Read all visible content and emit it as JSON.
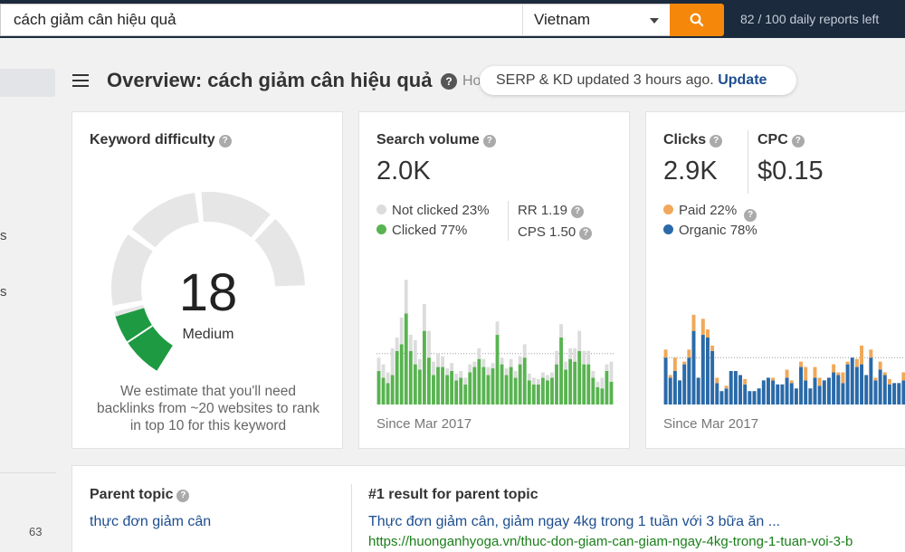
{
  "search": {
    "query": "cách giảm cân hiệu quả",
    "country": "Vietnam",
    "reports_left": "82 / 100 daily reports left"
  },
  "sidebar": {
    "fragments": [
      "s",
      "s"
    ],
    "count": "63"
  },
  "header": {
    "title": "Overview: cách giảm cân hiệu quả",
    "how_text": "Ho",
    "update_text": "SERP & KD updated 3 hours ago.",
    "update_link": "Update"
  },
  "kd": {
    "title": "Keyword difficulty",
    "value": "18",
    "level": "Medium",
    "score": 18,
    "description": "We estimate that you'll need backlinks from ~20 websites to rank in top 10 for this keyword"
  },
  "volume": {
    "title": "Search volume",
    "value": "2.0K",
    "not_clicked": "Not clicked 23%",
    "clicked": "Clicked 77%",
    "rr": "RR 1.19",
    "cps": "CPS 1.50",
    "since": "Since Mar 2017"
  },
  "clicks": {
    "title": "Clicks",
    "value": "2.9K",
    "cpc_title": "CPC",
    "cpc_value": "$0.15",
    "paid": "Paid 22%",
    "organic": "Organic 78%",
    "since": "Since Mar 2017"
  },
  "parent": {
    "title": "Parent topic",
    "topic": "thực đơn giảm cân",
    "result_title": "#1 result for parent topic",
    "result_link": "Thực đơn giảm cân, giảm ngay 4kg trong 1 tuần với 3 bữa ăn ...",
    "result_url": "https://huonganhyoga.vn/thuc-don-giam-can-giam-ngay-4kg-trong-1-tuan-voi-3-b"
  },
  "colors": {
    "accent": "#f5870a",
    "kd_green": "#1e9a42",
    "clicked_green": "#58b350",
    "not_clicked_grey": "#dcdcdc",
    "paid_orange": "#f0a85a",
    "organic_blue": "#2a6aa8",
    "link_blue": "#1d4e8f"
  },
  "chart_data": [
    {
      "type": "bar",
      "name": "search-volume-history",
      "series": [
        {
          "name": "Clicked",
          "values": [
            25,
            20,
            16,
            22,
            40,
            45,
            68,
            40,
            30,
            26,
            55,
            35,
            22,
            28,
            28,
            22,
            25,
            18,
            20,
            15,
            24,
            28,
            34,
            28,
            22,
            27,
            52,
            30,
            22,
            28,
            20,
            30,
            35,
            18,
            15,
            15,
            20,
            18,
            20,
            30,
            50,
            26,
            34,
            32,
            40,
            30,
            30,
            20,
            13,
            12,
            25,
            17
          ]
        },
        {
          "name": "Not clicked",
          "values": [
            10,
            10,
            8,
            20,
            10,
            20,
            25,
            12,
            18,
            8,
            20,
            20,
            10,
            10,
            8,
            5,
            6,
            5,
            5,
            5,
            6,
            4,
            8,
            6,
            6,
            4,
            10,
            5,
            5,
            6,
            5,
            6,
            10,
            5,
            5,
            4,
            4,
            4,
            4,
            10,
            10,
            6,
            8,
            10,
            15,
            10,
            10,
            5,
            4,
            8,
            5,
            15
          ]
        }
      ]
    },
    {
      "type": "bar",
      "name": "clicks-history",
      "series": [
        {
          "name": "Organic",
          "values": [
            35,
            20,
            25,
            18,
            30,
            35,
            55,
            20,
            52,
            50,
            40,
            16,
            10,
            12,
            25,
            25,
            22,
            15,
            10,
            10,
            12,
            18,
            20,
            18,
            15,
            15,
            20,
            16,
            12,
            28,
            18,
            12,
            20,
            14,
            18,
            20,
            24,
            22,
            16,
            30,
            35,
            28,
            30,
            22,
            35,
            18,
            26,
            22,
            15,
            16,
            16,
            18
          ]
        },
        {
          "name": "Paid",
          "values": [
            6,
            2,
            10,
            0,
            2,
            6,
            12,
            0,
            12,
            6,
            4,
            4,
            0,
            2,
            0,
            0,
            0,
            4,
            0,
            0,
            0,
            0,
            0,
            2,
            0,
            0,
            6,
            2,
            0,
            4,
            10,
            0,
            8,
            6,
            0,
            0,
            6,
            2,
            8,
            2,
            0,
            6,
            14,
            0,
            6,
            2,
            6,
            2,
            4,
            0,
            0,
            6
          ]
        }
      ]
    }
  ]
}
